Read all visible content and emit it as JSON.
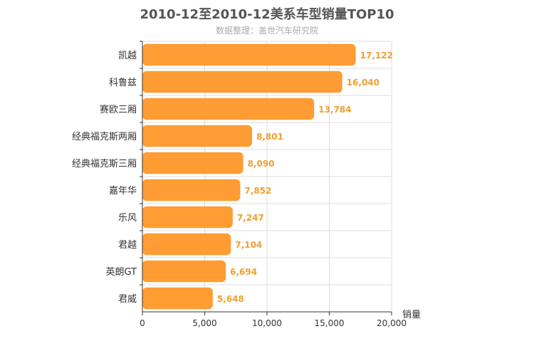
{
  "title": "2010-12至2010-12美系车型销量TOP10",
  "subtitle": "数据整理：盖世汽车研究院",
  "colors": {
    "bar": "#ff9c33",
    "value_label": "#f0a030",
    "grid": "#dddddd",
    "axis": "#333333",
    "title": "#555555",
    "subtitle": "#aaaaaa"
  },
  "chart_data": {
    "type": "bar",
    "orientation": "horizontal",
    "categories": [
      "凯越",
      "科鲁兹",
      "赛欧三厢",
      "经典福克斯两厢",
      "经典福克斯三厢",
      "嘉年华",
      "乐风",
      "君越",
      "英朗GT",
      "君威"
    ],
    "values": [
      17122,
      16040,
      13784,
      8801,
      8090,
      7852,
      7247,
      7104,
      6694,
      5648
    ],
    "value_labels": [
      "17,122",
      "16,040",
      "13,784",
      "8,801",
      "8,090",
      "7,852",
      "7,247",
      "7,104",
      "6,694",
      "5,648"
    ],
    "title": "2010-12至2010-12美系车型销量TOP10",
    "subtitle": "数据整理：盖世汽车研究院",
    "xlabel": "销量",
    "ylabel": "",
    "xlim": [
      0,
      20000
    ],
    "xticks": [
      0,
      5000,
      10000,
      15000,
      20000
    ],
    "xtick_labels": [
      "0",
      "5,000",
      "10,000",
      "15,000",
      "20,000"
    ],
    "grid": true,
    "legend": "none"
  }
}
